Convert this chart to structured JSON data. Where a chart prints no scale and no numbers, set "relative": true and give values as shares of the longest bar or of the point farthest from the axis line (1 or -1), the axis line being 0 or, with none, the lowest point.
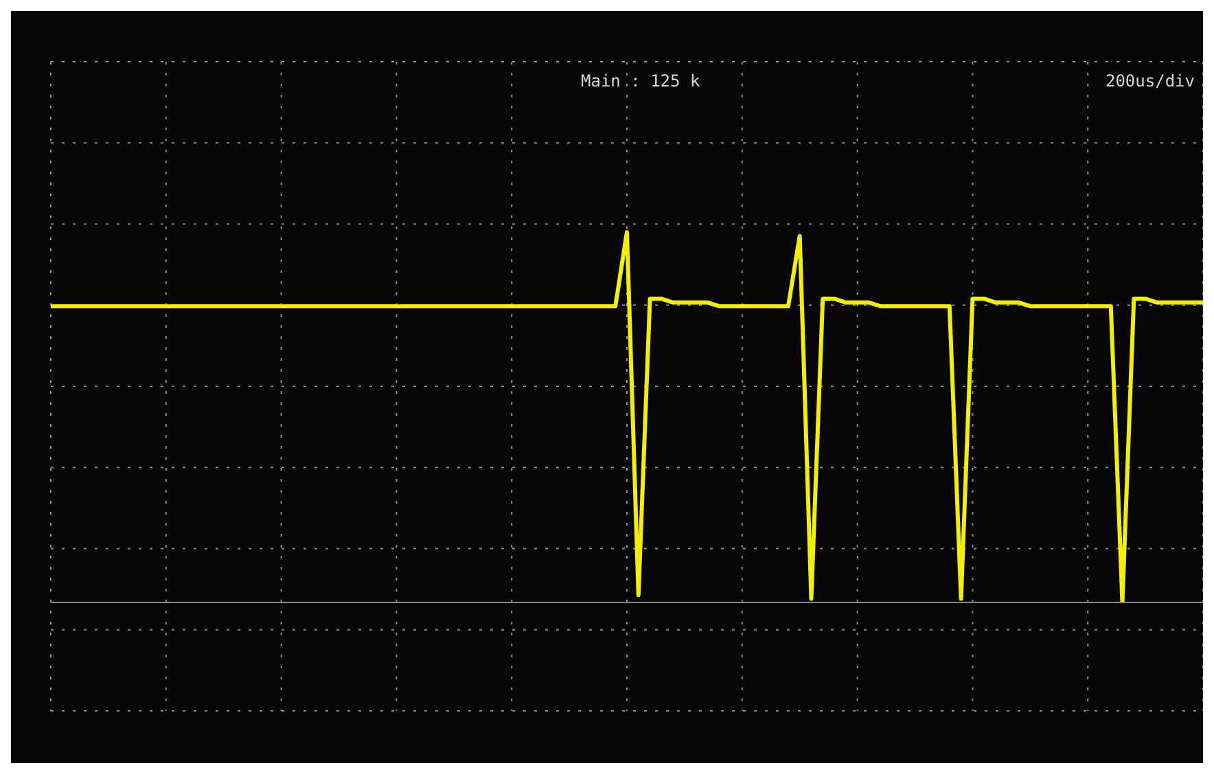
{
  "chart_data": {
    "type": "line",
    "relative": true,
    "categories": [
      null,
      null,
      null,
      null,
      null,
      null,
      null,
      null,
      null,
      null,
      null,
      null,
      null,
      null,
      null,
      null,
      null,
      null,
      null,
      null,
      null,
      null,
      null,
      null,
      null,
      null,
      null,
      null,
      null,
      null,
      null,
      null,
      null,
      null,
      null,
      null,
      null,
      null,
      null,
      null,
      null,
      null,
      null,
      null,
      null,
      null,
      null,
      null,
      null,
      null,
      null,
      null,
      null,
      null,
      null,
      null,
      null,
      null,
      null,
      null,
      null,
      null,
      null,
      null,
      null,
      null,
      null,
      null,
      null,
      null,
      null,
      null,
      null,
      null,
      null,
      null,
      null,
      null,
      null,
      null,
      null,
      null,
      null,
      null,
      null,
      null,
      null,
      null,
      null,
      null,
      null,
      null,
      null,
      null,
      null,
      null,
      null,
      null,
      null,
      null,
      null
    ],
    "series": [
      {
        "color": "#f0f000",
        "values": [
          0.8,
          0.8,
          0.8,
          0.8,
          0.8,
          0.8,
          0.8,
          0.8,
          0.8,
          0.8,
          0.8,
          0.8,
          0.8,
          0.8,
          0.8,
          0.8,
          0.8,
          0.8,
          0.8,
          0.8,
          0.8,
          0.8,
          0.8,
          0.8,
          0.8,
          0.8,
          0.8,
          0.8,
          0.8,
          0.8,
          0.8,
          0.8,
          0.8,
          0.8,
          0.8,
          0.8,
          0.8,
          0.8,
          0.8,
          0.8,
          0.8,
          0.8,
          0.8,
          0.8,
          0.8,
          0.8,
          0.8,
          0.8,
          0.8,
          0.8,
          1.0,
          0.02,
          0.82,
          0.82,
          0.81,
          0.81,
          0.81,
          0.81,
          0.8,
          0.8,
          0.8,
          0.8,
          0.8,
          0.8,
          0.8,
          0.99,
          0.01,
          0.82,
          0.82,
          0.81,
          0.81,
          0.81,
          0.8,
          0.8,
          0.8,
          0.8,
          0.8,
          0.8,
          0.8,
          0.01,
          0.82,
          0.82,
          0.81,
          0.81,
          0.81,
          0.8,
          0.8,
          0.8,
          0.8,
          0.8,
          0.8,
          0.8,
          0.8,
          0.0,
          0.82,
          0.82,
          0.81,
          0.81,
          0.81,
          0.81,
          0.81
        ]
      }
    ],
    "grid": true,
    "marker": "none",
    "line_style": "solid",
    "legend": false,
    "annotations": [
      "Main : 125 k",
      "200us/div"
    ]
  }
}
